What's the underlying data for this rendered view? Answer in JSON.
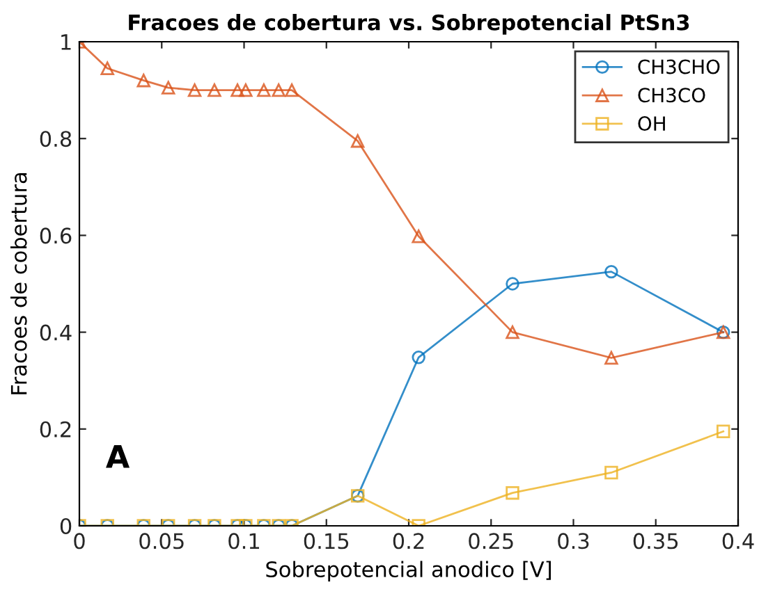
{
  "chart_data": {
    "type": "line",
    "title": "Fracoes de cobertura vs. Sobrepotencial PtSn3",
    "xlabel": "Sobrepotencial anodico [V]",
    "ylabel": "Fracoes de cobertura",
    "x": [
      0,
      0.017,
      0.039,
      0.054,
      0.07,
      0.082,
      0.096,
      0.101,
      0.112,
      0.121,
      0.129,
      0.169,
      0.206,
      0.263,
      0.323,
      0.391
    ],
    "series": [
      {
        "name": "CH3CHO",
        "color": "#0072bd",
        "marker": "circle",
        "values": [
          0,
          0,
          0,
          0,
          0,
          0,
          0,
          0,
          0,
          0,
          0,
          0.062,
          0.348,
          0.5,
          0.525,
          0.4
        ]
      },
      {
        "name": "CH3CO",
        "color": "#d95319",
        "marker": "triangle",
        "values": [
          1,
          0.945,
          0.92,
          0.905,
          0.9,
          0.9,
          0.9,
          0.9,
          0.9,
          0.9,
          0.9,
          0.795,
          0.598,
          0.4,
          0.347,
          0.4
        ]
      },
      {
        "name": "OH",
        "color": "#edb120",
        "marker": "square",
        "values": [
          0,
          0,
          0,
          0,
          0,
          0,
          0,
          0,
          0,
          0,
          0,
          0.062,
          0,
          0.068,
          0.11,
          0.195
        ]
      }
    ],
    "xlim": [
      0,
      0.4
    ],
    "xticks": [
      0,
      0.05,
      0.1,
      0.15,
      0.2,
      0.25,
      0.3,
      0.35,
      0.4
    ],
    "ylim": [
      0,
      1
    ],
    "yticks": [
      0,
      0.2,
      0.4,
      0.6,
      0.8,
      1
    ],
    "grid": false,
    "legend": "top right",
    "annotations": [
      "A"
    ]
  }
}
